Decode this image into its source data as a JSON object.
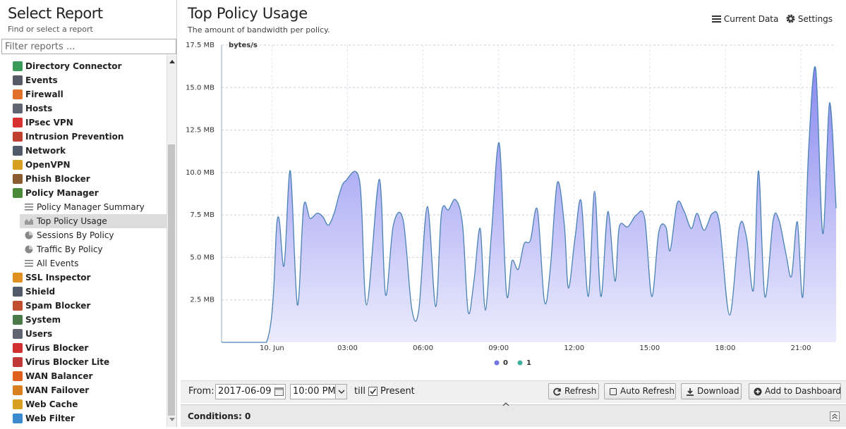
{
  "sidebar": {
    "title": "Select Report",
    "subtitle": "Find or select a report",
    "filter_placeholder": "Filter reports ...",
    "tree": [
      {
        "label": "Directory Connector",
        "icon_color": "#3a9a5a"
      },
      {
        "label": "Events",
        "icon_color": "#555a66"
      },
      {
        "label": "Firewall",
        "icon_color": "#e0702a"
      },
      {
        "label": "Hosts",
        "icon_color": "#606470"
      },
      {
        "label": "IPsec VPN",
        "icon_color": "#d83030"
      },
      {
        "label": "Intrusion Prevention",
        "icon_color": "#c04030"
      },
      {
        "label": "Network",
        "icon_color": "#505a68"
      },
      {
        "label": "OpenVPN",
        "icon_color": "#d8a020"
      },
      {
        "label": "Phish Blocker",
        "icon_color": "#8a5a30"
      },
      {
        "label": "Policy Manager",
        "icon_color": "#4a8a3a",
        "expanded": true,
        "children": [
          {
            "label": "Policy Manager Summary",
            "icon": "list"
          },
          {
            "label": "Top Policy Usage",
            "icon": "area",
            "selected": true
          },
          {
            "label": "Sessions By Policy",
            "icon": "pie"
          },
          {
            "label": "Traffic By Policy",
            "icon": "pie"
          },
          {
            "label": "All Events",
            "icon": "list"
          }
        ]
      },
      {
        "label": "SSL Inspector",
        "icon_color": "#e09020"
      },
      {
        "label": "Shield",
        "icon_color": "#505a68"
      },
      {
        "label": "Spam Blocker",
        "icon_color": "#c05030"
      },
      {
        "label": "System",
        "icon_color": "#4a7a4a"
      },
      {
        "label": "Users",
        "icon_color": "#606470"
      },
      {
        "label": "Virus Blocker",
        "icon_color": "#d03030"
      },
      {
        "label": "Virus Blocker Lite",
        "icon_color": "#c03838"
      },
      {
        "label": "WAN Balancer",
        "icon_color": "#e06020"
      },
      {
        "label": "WAN Failover",
        "icon_color": "#d88020"
      },
      {
        "label": "Web Cache",
        "icon_color": "#d8a020"
      },
      {
        "label": "Web Filter",
        "icon_color": "#3a8ad0"
      }
    ]
  },
  "report": {
    "title": "Top Policy Usage",
    "subtitle": "The amount of bandwidth per policy.",
    "actions": [
      "Current Data",
      "Settings"
    ]
  },
  "chart_data": {
    "type": "area",
    "y_label": "bytes/s",
    "x": [
      -2.0,
      -0.22,
      0.22,
      0.48,
      0.73,
      1.01,
      1.26,
      1.51,
      1.79,
      2.02,
      2.24,
      2.47,
      2.69,
      2.92,
      3.48,
      3.76,
      4.26,
      4.51,
      4.82,
      5.21,
      5.55,
      5.83,
      6.17,
      6.5,
      6.73,
      7.01,
      7.29,
      7.57,
      7.79,
      8.02,
      8.27,
      8.47,
      8.72,
      9.03,
      9.31,
      9.53,
      9.78,
      10.01,
      10.26,
      10.54,
      10.82,
      11.05,
      11.33,
      11.61,
      11.77,
      12.03,
      12.28,
      12.56,
      12.81,
      13.06,
      13.34,
      13.62,
      13.79,
      14.13,
      14.47,
      14.8,
      15.08,
      15.36,
      15.64,
      15.81,
      16.09,
      16.37,
      16.65,
      16.88,
      17.16,
      17.49,
      17.77,
      18.17,
      18.56,
      18.84,
      19.12,
      19.32,
      19.57,
      19.9,
      20.13,
      20.41,
      20.63,
      20.86,
      21.08,
      21.31,
      21.59,
      21.87,
      22.14,
      22.4
    ],
    "series": [
      {
        "name": "0",
        "color": "#7474e6",
        "line_color": "#4a82b4",
        "values": [
          0,
          0,
          7.3,
          4.5,
          10.1,
          2.2,
          8.0,
          7.3,
          7.6,
          7.4,
          6.9,
          7.6,
          8.8,
          9.5,
          9.5,
          2.2,
          9.6,
          2.8,
          6.9,
          7.2,
          2.0,
          1.9,
          8.0,
          2.1,
          7.6,
          7.8,
          8.4,
          6.9,
          1.8,
          3.6,
          6.7,
          1.9,
          6.5,
          11.7,
          2.9,
          4.8,
          4.3,
          5.8,
          6.0,
          7.8,
          2.4,
          4.3,
          9.4,
          6.9,
          3.2,
          6.1,
          8.3,
          2.7,
          8.9,
          2.7,
          7.7,
          3.6,
          6.8,
          6.8,
          7.5,
          7.3,
          2.7,
          6.5,
          6.8,
          5.4,
          8.2,
          7.7,
          6.7,
          7.6,
          6.6,
          7.6,
          7.0,
          1.6,
          6.8,
          6.2,
          3.1,
          10.1,
          2.7,
          7.2,
          7.2,
          5.2,
          3.9,
          7.1,
          2.7,
          11.4,
          16.1,
          6.4,
          14.1,
          7.9
        ]
      },
      {
        "name": "1",
        "color": "#3fae9e",
        "values": [
          null,
          null,
          null,
          null,
          null,
          null,
          null,
          null,
          null,
          null,
          null,
          null,
          null,
          null,
          null,
          null,
          null,
          null,
          null,
          null,
          null,
          null,
          null,
          null,
          null,
          null,
          null,
          null,
          null,
          null,
          null,
          null,
          null,
          null,
          null,
          null,
          null,
          null,
          null,
          null,
          null,
          null,
          null,
          null,
          null,
          null,
          null,
          null,
          null,
          null,
          null,
          null,
          null,
          null,
          null,
          null,
          null,
          null,
          null,
          null,
          null,
          null,
          null,
          null,
          null,
          null,
          null,
          null,
          null,
          null,
          null,
          null,
          null,
          null,
          null,
          null,
          null,
          null,
          null,
          null,
          null,
          null,
          null,
          null
        ]
      }
    ],
    "xlim": [
      -2,
      22.4
    ],
    "xticks": [
      {
        "value": 0,
        "label": "10. Jun"
      },
      {
        "value": 3,
        "label": "03:00"
      },
      {
        "value": 6,
        "label": "06:00"
      },
      {
        "value": 9,
        "label": "09:00"
      },
      {
        "value": 12,
        "label": "12:00"
      },
      {
        "value": 15,
        "label": "15:00"
      },
      {
        "value": 18,
        "label": "18:00"
      },
      {
        "value": 21,
        "label": "21:00"
      }
    ],
    "ylim": [
      0,
      17.5
    ],
    "yticks": [
      {
        "value": 2.5,
        "label": "2.5 MB"
      },
      {
        "value": 5,
        "label": "5.0 MB"
      },
      {
        "value": 7.5,
        "label": "7.5 MB"
      },
      {
        "value": 10,
        "label": "10.0 MB"
      },
      {
        "value": 12.5,
        "label": "12.5 MB"
      },
      {
        "value": 15,
        "label": "15.0 MB"
      },
      {
        "value": 17.5,
        "label": "17.5 MB"
      }
    ],
    "grid": true,
    "legend": "bottom"
  },
  "toolbar": {
    "from_label": "From:",
    "date": "2017-06-09",
    "time": "10:00 PM",
    "till_label": "till",
    "present_label": "Present",
    "present_checked": true,
    "buttons": [
      "Refresh",
      "Auto Refresh",
      "Download",
      "Add to Dashboard"
    ]
  },
  "conditions": "Conditions: 0"
}
